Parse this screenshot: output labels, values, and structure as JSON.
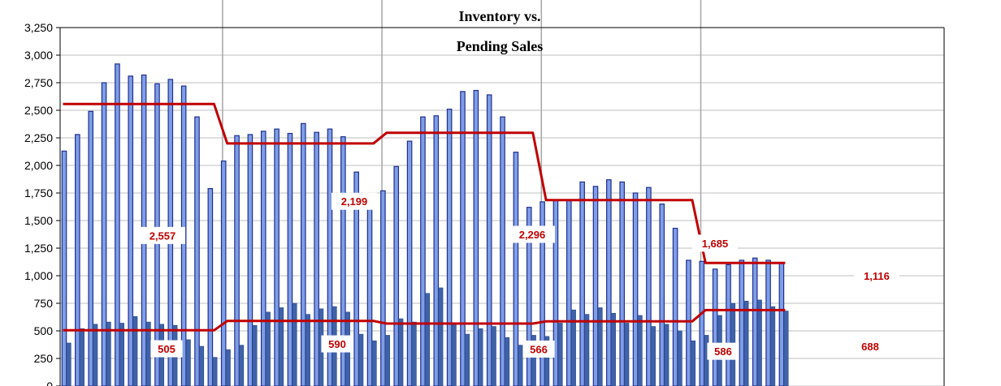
{
  "chart_data": {
    "type": "bar",
    "title": "Inventory vs. Pending Sales",
    "title_lines": [
      "Inventory vs.",
      "Pending Sales"
    ],
    "ylim": [
      0,
      3250
    ],
    "yticks": [
      0,
      250,
      500,
      750,
      1000,
      1250,
      1500,
      1750,
      2000,
      2250,
      2500,
      2750,
      3000,
      3250
    ],
    "ytick_labels": [
      "0",
      "250",
      "500",
      "750",
      "1,000",
      "1,250",
      "1,500",
      "1,750",
      "2,000",
      "2,250",
      "2,500",
      "2,750",
      "3,000",
      "3,250"
    ],
    "grid": true,
    "colors": {
      "inventory_bar": "#7f9ee6",
      "inventory_edge": "#1f2f8f",
      "pending_bar": "#3f62a8",
      "average_line": "#c00000",
      "year_divider": "#a6a6a6",
      "gridline": "#bfbfbf"
    },
    "series": [
      {
        "values": [
          2130,
          2280,
          2490,
          2750,
          2920,
          2810,
          2820,
          2740,
          2780,
          2720,
          2440,
          1790,
          2040,
          2270,
          2280,
          2310,
          2330,
          2290,
          2380,
          2300,
          2330,
          2260,
          1940,
          1640,
          1770,
          1990,
          2220,
          2440,
          2450,
          2510,
          2670,
          2680,
          2640,
          2440,
          2120,
          1620,
          1670,
          1690,
          1690,
          1850,
          1810,
          1870,
          1850,
          1750,
          1800,
          1650,
          1430,
          1140,
          1130,
          1060,
          1100,
          1140,
          1160,
          1140,
          1120
        ]
      },
      {
        "values": [
          390,
          520,
          560,
          580,
          570,
          630,
          580,
          560,
          550,
          420,
          360,
          260,
          330,
          370,
          550,
          670,
          710,
          750,
          650,
          700,
          720,
          670,
          470,
          410,
          460,
          610,
          580,
          840,
          890,
          560,
          470,
          520,
          540,
          440,
          370,
          460,
          450,
          570,
          690,
          650,
          710,
          660,
          570,
          640,
          540,
          560,
          500,
          410,
          460,
          640,
          750,
          770,
          780,
          720,
          680
        ]
      }
    ],
    "averages": [
      {
        "label": "2,557",
        "value": 2557,
        "start": 1,
        "end": 12
      },
      {
        "label": "2,199",
        "value": 2199,
        "start": 13,
        "end": 24
      },
      {
        "label": "2,296",
        "value": 2296,
        "start": 25,
        "end": 36
      },
      {
        "label": "1,685",
        "value": 1685,
        "start": 37,
        "end": 48
      },
      {
        "label": "1,116",
        "value": 1116,
        "start": 49,
        "end": 55
      },
      {
        "label": "505",
        "value": 505,
        "start": 1,
        "end": 12
      },
      {
        "label": "590",
        "value": 590,
        "start": 13,
        "end": 24
      },
      {
        "label": "566",
        "value": 566,
        "start": 25,
        "end": 36
      },
      {
        "label": "586",
        "value": 586,
        "start": 37,
        "end": 48
      },
      {
        "label": "688",
        "value": 688,
        "start": 49,
        "end": 55
      }
    ],
    "year_dividers_after_month": [
      12,
      24,
      36,
      48
    ]
  }
}
